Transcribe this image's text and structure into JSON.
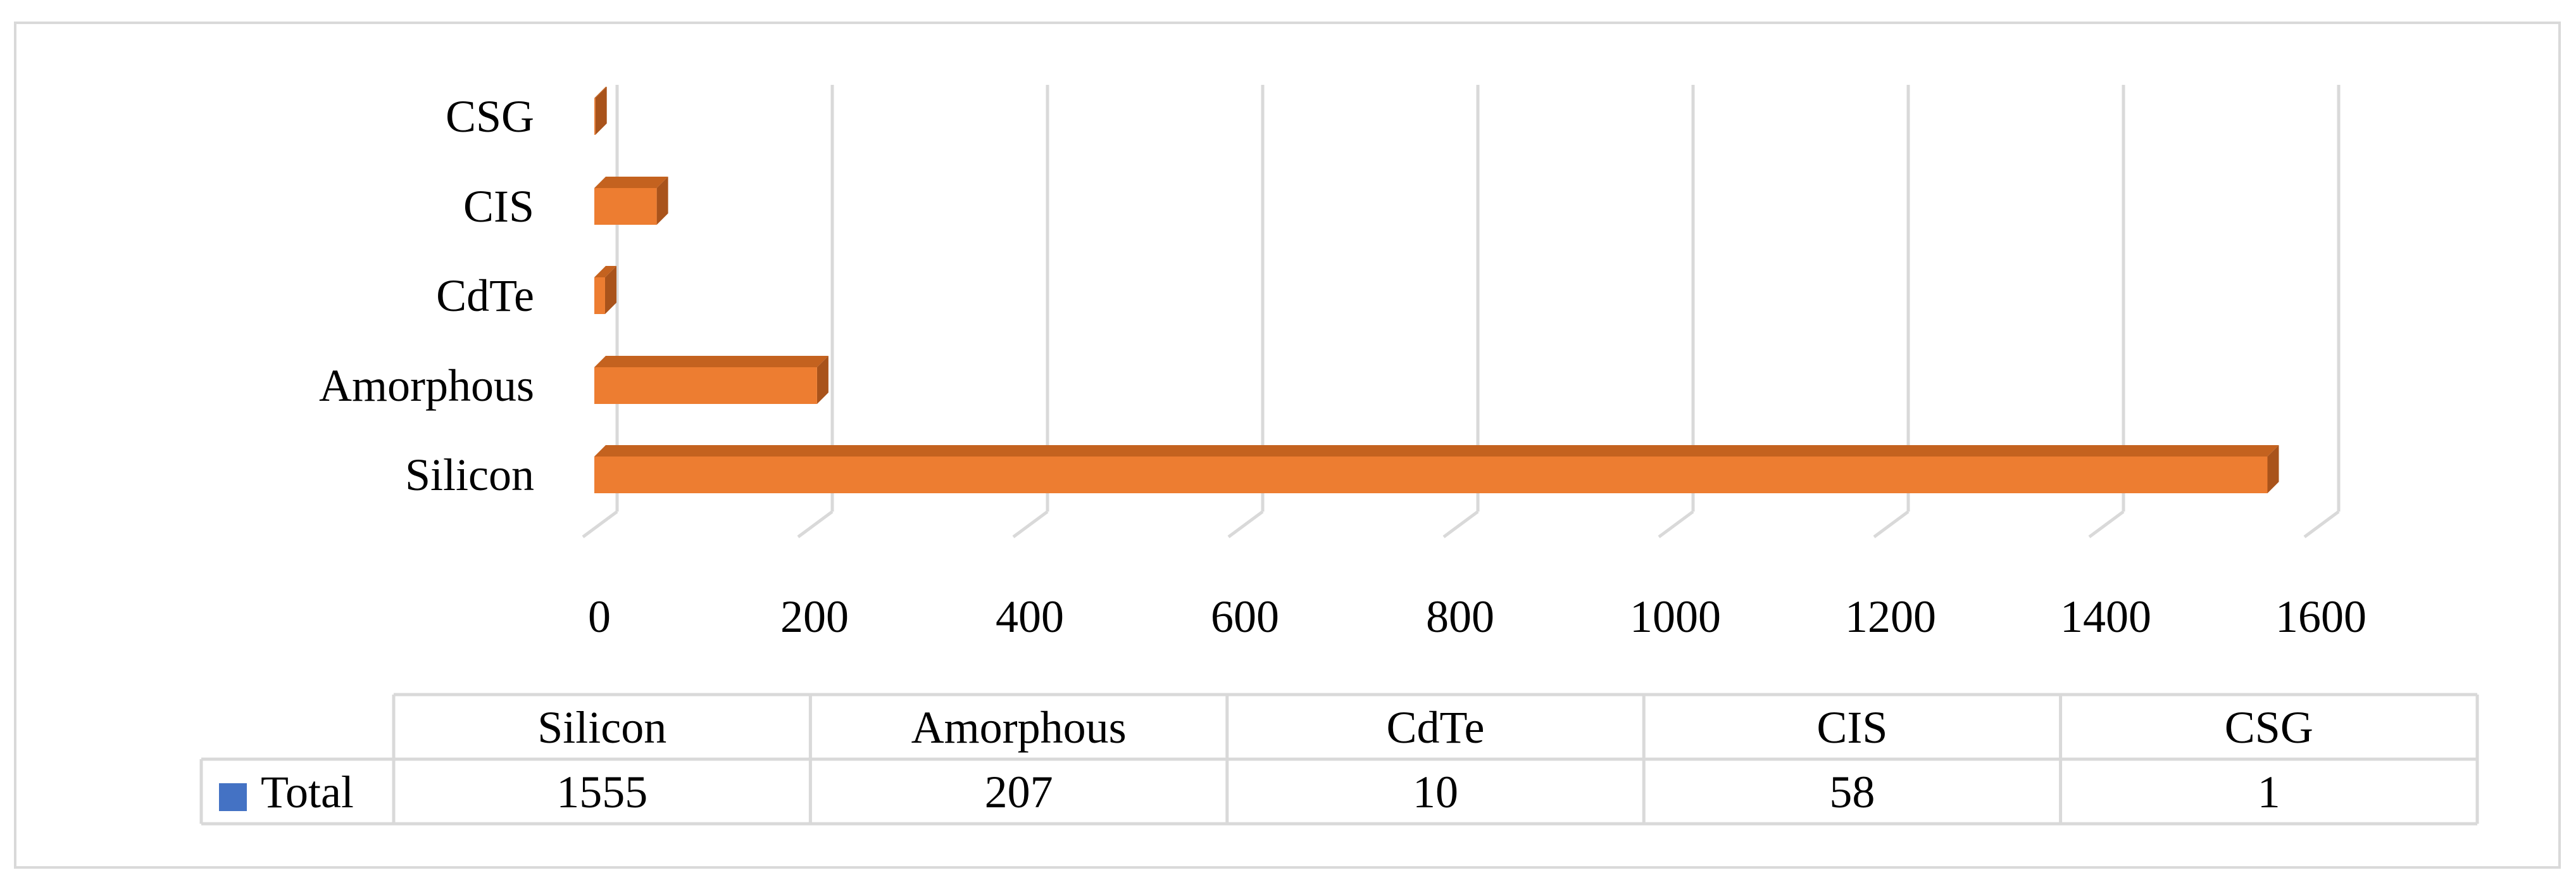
{
  "chart_data": {
    "type": "bar",
    "orientation": "horizontal",
    "style": "3d",
    "categories": [
      "Silicon",
      "Amorphous",
      "CdTe",
      "CIS",
      "CSG"
    ],
    "series": [
      {
        "name": "Total",
        "values": [
          1555,
          207,
          10,
          58,
          1
        ]
      }
    ],
    "xlim": [
      0,
      1600
    ],
    "xticks": [
      "0",
      "200",
      "400",
      "600",
      "800",
      "1000",
      "1200",
      "1400",
      "1600"
    ],
    "grid": true,
    "legend": "data-table",
    "colors": {
      "bar_front": "#ed7d31",
      "bar_side": "#a9531b",
      "bar_top": "#c4621f",
      "legend_key": "#4472c4",
      "grid": "#d9d9d9"
    },
    "data_table": {
      "row_label": "Total",
      "headers": [
        "Silicon",
        "Amorphous",
        "CdTe",
        "CIS",
        "CSG"
      ],
      "values": [
        "1555",
        "207",
        "10",
        "58",
        "1"
      ]
    }
  }
}
